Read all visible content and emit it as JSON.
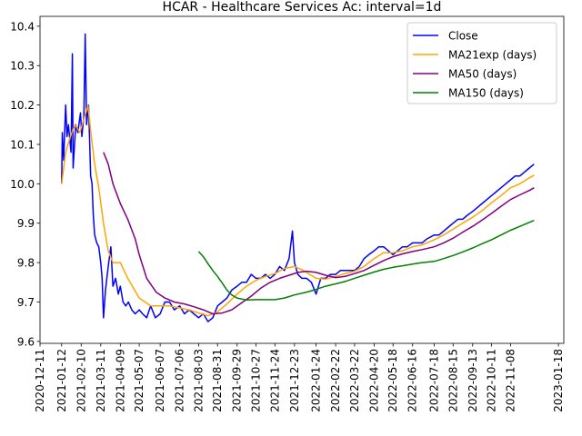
{
  "chart_data": {
    "type": "line",
    "title": "HCAR - Healthcare Services Ac: interval=1d",
    "xlabel": "",
    "ylabel": "",
    "xlim": [
      "2020-12-11",
      "2023-01-26"
    ],
    "ylim": [
      9.595,
      10.425
    ],
    "y_ticks": [
      9.6,
      9.7,
      9.8,
      9.9,
      10.0,
      10.1,
      10.2,
      10.3,
      10.4
    ],
    "x_ticks": [
      "2020-12-11",
      "2021-01-12",
      "2021-02-10",
      "2021-03-11",
      "2021-04-09",
      "2021-05-07",
      "2021-06-07",
      "2021-07-06",
      "2021-08-03",
      "2021-08-31",
      "2021-09-29",
      "2021-10-27",
      "2021-11-24",
      "2021-12-23",
      "2022-01-24",
      "2022-02-22",
      "2022-03-22",
      "2022-04-20",
      "2022-05-18",
      "2022-06-16",
      "2022-07-18",
      "2022-08-15",
      "2022-09-13",
      "2022-10-11",
      "2022-11-08",
      "2023-01-18"
    ],
    "legend_position": "top-right",
    "grid": false,
    "series": [
      {
        "name": "Close",
        "color": "#0000ff",
        "points": [
          [
            "2021-01-12",
            10.0
          ],
          [
            "2021-01-13",
            10.13
          ],
          [
            "2021-01-15",
            10.06
          ],
          [
            "2021-01-18",
            10.2
          ],
          [
            "2021-01-20",
            10.12
          ],
          [
            "2021-01-22",
            10.15
          ],
          [
            "2021-01-26",
            10.08
          ],
          [
            "2021-01-28",
            10.33
          ],
          [
            "2021-01-29",
            10.04
          ],
          [
            "2021-02-02",
            10.15
          ],
          [
            "2021-02-05",
            10.13
          ],
          [
            "2021-02-09",
            10.18
          ],
          [
            "2021-02-11",
            10.12
          ],
          [
            "2021-02-14",
            10.17
          ],
          [
            "2021-02-16",
            10.38
          ],
          [
            "2021-02-18",
            10.15
          ],
          [
            "2021-02-21",
            10.2
          ],
          [
            "2021-02-24",
            10.02
          ],
          [
            "2021-02-26",
            10.0
          ],
          [
            "2021-02-28",
            9.92
          ],
          [
            "2021-03-02",
            9.87
          ],
          [
            "2021-03-05",
            9.85
          ],
          [
            "2021-03-08",
            9.84
          ],
          [
            "2021-03-11",
            9.8
          ],
          [
            "2021-03-13",
            9.76
          ],
          [
            "2021-03-15",
            9.66
          ],
          [
            "2021-03-18",
            9.73
          ],
          [
            "2021-03-22",
            9.79
          ],
          [
            "2021-03-26",
            9.84
          ],
          [
            "2021-03-29",
            9.74
          ],
          [
            "2021-04-02",
            9.76
          ],
          [
            "2021-04-06",
            9.72
          ],
          [
            "2021-04-09",
            9.74
          ],
          [
            "2021-04-13",
            9.7
          ],
          [
            "2021-04-17",
            9.69
          ],
          [
            "2021-04-21",
            9.7
          ],
          [
            "2021-04-26",
            9.68
          ],
          [
            "2021-05-01",
            9.67
          ],
          [
            "2021-05-07",
            9.68
          ],
          [
            "2021-05-12",
            9.67
          ],
          [
            "2021-05-18",
            9.66
          ],
          [
            "2021-05-24",
            9.69
          ],
          [
            "2021-05-31",
            9.66
          ],
          [
            "2021-06-07",
            9.67
          ],
          [
            "2021-06-14",
            9.7
          ],
          [
            "2021-06-21",
            9.7
          ],
          [
            "2021-06-28",
            9.68
          ],
          [
            "2021-07-06",
            9.69
          ],
          [
            "2021-07-13",
            9.67
          ],
          [
            "2021-07-20",
            9.68
          ],
          [
            "2021-07-27",
            9.67
          ],
          [
            "2021-08-03",
            9.66
          ],
          [
            "2021-08-10",
            9.67
          ],
          [
            "2021-08-17",
            9.65
          ],
          [
            "2021-08-24",
            9.66
          ],
          [
            "2021-08-31",
            9.69
          ],
          [
            "2021-09-07",
            9.7
          ],
          [
            "2021-09-14",
            9.71
          ],
          [
            "2021-09-21",
            9.73
          ],
          [
            "2021-09-29",
            9.74
          ],
          [
            "2021-10-06",
            9.75
          ],
          [
            "2021-10-13",
            9.75
          ],
          [
            "2021-10-20",
            9.77
          ],
          [
            "2021-10-27",
            9.76
          ],
          [
            "2021-11-03",
            9.76
          ],
          [
            "2021-11-10",
            9.77
          ],
          [
            "2021-11-17",
            9.76
          ],
          [
            "2021-11-24",
            9.77
          ],
          [
            "2021-12-01",
            9.79
          ],
          [
            "2021-12-08",
            9.78
          ],
          [
            "2021-12-15",
            9.81
          ],
          [
            "2021-12-20",
            9.88
          ],
          [
            "2021-12-23",
            9.8
          ],
          [
            "2021-12-28",
            9.77
          ],
          [
            "2022-01-03",
            9.76
          ],
          [
            "2022-01-10",
            9.76
          ],
          [
            "2022-01-17",
            9.75
          ],
          [
            "2022-01-24",
            9.72
          ],
          [
            "2022-01-31",
            9.76
          ],
          [
            "2022-02-07",
            9.76
          ],
          [
            "2022-02-14",
            9.77
          ],
          [
            "2022-02-22",
            9.77
          ],
          [
            "2022-03-01",
            9.78
          ],
          [
            "2022-03-08",
            9.78
          ],
          [
            "2022-03-15",
            9.78
          ],
          [
            "2022-03-22",
            9.78
          ],
          [
            "2022-03-29",
            9.79
          ],
          [
            "2022-04-05",
            9.81
          ],
          [
            "2022-04-12",
            9.82
          ],
          [
            "2022-04-20",
            9.83
          ],
          [
            "2022-04-27",
            9.84
          ],
          [
            "2022-05-04",
            9.84
          ],
          [
            "2022-05-11",
            9.83
          ],
          [
            "2022-05-18",
            9.82
          ],
          [
            "2022-05-25",
            9.83
          ],
          [
            "2022-06-01",
            9.84
          ],
          [
            "2022-06-08",
            9.84
          ],
          [
            "2022-06-16",
            9.85
          ],
          [
            "2022-06-23",
            9.85
          ],
          [
            "2022-06-30",
            9.85
          ],
          [
            "2022-07-07",
            9.86
          ],
          [
            "2022-07-18",
            9.87
          ],
          [
            "2022-07-25",
            9.87
          ],
          [
            "2022-08-01",
            9.88
          ],
          [
            "2022-08-08",
            9.89
          ],
          [
            "2022-08-15",
            9.9
          ],
          [
            "2022-08-22",
            9.91
          ],
          [
            "2022-08-29",
            9.91
          ],
          [
            "2022-09-05",
            9.92
          ],
          [
            "2022-09-13",
            9.93
          ],
          [
            "2022-09-20",
            9.94
          ],
          [
            "2022-09-27",
            9.95
          ],
          [
            "2022-10-04",
            9.96
          ],
          [
            "2022-10-11",
            9.97
          ],
          [
            "2022-10-18",
            9.98
          ],
          [
            "2022-10-25",
            9.99
          ],
          [
            "2022-11-01",
            10.0
          ],
          [
            "2022-11-08",
            10.01
          ],
          [
            "2022-11-15",
            10.02
          ],
          [
            "2022-11-22",
            10.02
          ],
          [
            "2022-11-29",
            10.03
          ],
          [
            "2022-12-06",
            10.04
          ],
          [
            "2022-12-13",
            10.05
          ]
        ]
      },
      {
        "name": "MA21exp (days)",
        "color": "#ffa500",
        "points": [
          [
            "2021-01-12",
            10.0
          ],
          [
            "2021-01-18",
            10.08
          ],
          [
            "2021-01-25",
            10.12
          ],
          [
            "2021-02-01",
            10.15
          ],
          [
            "2021-02-08",
            10.13
          ],
          [
            "2021-02-15",
            10.17
          ],
          [
            "2021-02-20",
            10.2
          ],
          [
            "2021-02-25",
            10.12
          ],
          [
            "2021-03-02",
            10.05
          ],
          [
            "2021-03-08",
            9.99
          ],
          [
            "2021-03-15",
            9.9
          ],
          [
            "2021-03-22",
            9.83
          ],
          [
            "2021-03-29",
            9.8
          ],
          [
            "2021-04-09",
            9.8
          ],
          [
            "2021-04-20",
            9.76
          ],
          [
            "2021-05-07",
            9.71
          ],
          [
            "2021-05-24",
            9.69
          ],
          [
            "2021-06-07",
            9.69
          ],
          [
            "2021-06-21",
            9.69
          ],
          [
            "2021-07-06",
            9.685
          ],
          [
            "2021-07-20",
            9.68
          ],
          [
            "2021-08-03",
            9.672
          ],
          [
            "2021-08-17",
            9.665
          ],
          [
            "2021-08-31",
            9.675
          ],
          [
            "2021-09-14",
            9.695
          ],
          [
            "2021-09-29",
            9.72
          ],
          [
            "2021-10-13",
            9.74
          ],
          [
            "2021-10-27",
            9.755
          ],
          [
            "2021-11-10",
            9.765
          ],
          [
            "2021-11-24",
            9.772
          ],
          [
            "2021-12-08",
            9.785
          ],
          [
            "2021-12-23",
            9.79
          ],
          [
            "2022-01-03",
            9.782
          ],
          [
            "2022-01-24",
            9.76
          ],
          [
            "2022-02-07",
            9.758
          ],
          [
            "2022-02-22",
            9.765
          ],
          [
            "2022-03-08",
            9.772
          ],
          [
            "2022-03-22",
            9.778
          ],
          [
            "2022-04-05",
            9.79
          ],
          [
            "2022-04-20",
            9.81
          ],
          [
            "2022-05-04",
            9.825
          ],
          [
            "2022-05-18",
            9.825
          ],
          [
            "2022-06-01",
            9.83
          ],
          [
            "2022-06-16",
            9.84
          ],
          [
            "2022-06-30",
            9.845
          ],
          [
            "2022-07-18",
            9.858
          ],
          [
            "2022-08-01",
            9.87
          ],
          [
            "2022-08-15",
            9.885
          ],
          [
            "2022-08-29",
            9.9
          ],
          [
            "2022-09-13",
            9.915
          ],
          [
            "2022-09-27",
            9.932
          ],
          [
            "2022-10-11",
            9.952
          ],
          [
            "2022-10-25",
            9.97
          ],
          [
            "2022-11-08",
            9.99
          ],
          [
            "2022-11-22",
            10.0
          ],
          [
            "2022-12-06",
            10.015
          ],
          [
            "2022-12-13",
            10.022
          ]
        ]
      },
      {
        "name": "MA50 (days)",
        "color": "#800080",
        "points": [
          [
            "2021-03-15",
            10.08
          ],
          [
            "2021-03-22",
            10.05
          ],
          [
            "2021-03-29",
            10.0
          ],
          [
            "2021-04-09",
            9.95
          ],
          [
            "2021-04-20",
            9.91
          ],
          [
            "2021-05-01",
            9.86
          ],
          [
            "2021-05-07",
            9.82
          ],
          [
            "2021-05-18",
            9.76
          ],
          [
            "2021-06-01",
            9.725
          ],
          [
            "2021-06-14",
            9.71
          ],
          [
            "2021-06-28",
            9.7
          ],
          [
            "2021-07-13",
            9.695
          ],
          [
            "2021-07-27",
            9.688
          ],
          [
            "2021-08-10",
            9.68
          ],
          [
            "2021-08-24",
            9.67
          ],
          [
            "2021-09-07",
            9.672
          ],
          [
            "2021-09-21",
            9.68
          ],
          [
            "2021-10-06",
            9.698
          ],
          [
            "2021-10-20",
            9.715
          ],
          [
            "2021-11-03",
            9.735
          ],
          [
            "2021-11-17",
            9.75
          ],
          [
            "2021-12-01",
            9.76
          ],
          [
            "2021-12-15",
            9.768
          ],
          [
            "2021-12-28",
            9.775
          ],
          [
            "2022-01-10",
            9.778
          ],
          [
            "2022-01-24",
            9.775
          ],
          [
            "2022-02-07",
            9.768
          ],
          [
            "2022-02-22",
            9.762
          ],
          [
            "2022-03-08",
            9.765
          ],
          [
            "2022-03-22",
            9.772
          ],
          [
            "2022-04-05",
            9.78
          ],
          [
            "2022-04-20",
            9.793
          ],
          [
            "2022-05-04",
            9.805
          ],
          [
            "2022-05-18",
            9.815
          ],
          [
            "2022-06-01",
            9.822
          ],
          [
            "2022-06-16",
            9.828
          ],
          [
            "2022-06-30",
            9.833
          ],
          [
            "2022-07-18",
            9.84
          ],
          [
            "2022-08-01",
            9.85
          ],
          [
            "2022-08-15",
            9.862
          ],
          [
            "2022-08-29",
            9.877
          ],
          [
            "2022-09-13",
            9.892
          ],
          [
            "2022-09-27",
            9.908
          ],
          [
            "2022-10-11",
            9.925
          ],
          [
            "2022-10-25",
            9.943
          ],
          [
            "2022-11-08",
            9.96
          ],
          [
            "2022-11-22",
            9.972
          ],
          [
            "2022-12-06",
            9.983
          ],
          [
            "2022-12-13",
            9.99
          ]
        ]
      },
      {
        "name": "MA150 (days)",
        "color": "#008000",
        "points": [
          [
            "2021-08-03",
            9.828
          ],
          [
            "2021-08-10",
            9.815
          ],
          [
            "2021-08-17",
            9.797
          ],
          [
            "2021-08-24",
            9.78
          ],
          [
            "2021-08-31",
            9.765
          ],
          [
            "2021-09-07",
            9.748
          ],
          [
            "2021-09-14",
            9.73
          ],
          [
            "2021-09-21",
            9.718
          ],
          [
            "2021-09-29",
            9.71
          ],
          [
            "2021-10-13",
            9.705
          ],
          [
            "2021-10-27",
            9.706
          ],
          [
            "2021-11-10",
            9.706
          ],
          [
            "2021-11-24",
            9.706
          ],
          [
            "2021-12-08",
            9.71
          ],
          [
            "2021-12-23",
            9.718
          ],
          [
            "2022-01-10",
            9.725
          ],
          [
            "2022-01-24",
            9.732
          ],
          [
            "2022-02-07",
            9.74
          ],
          [
            "2022-02-22",
            9.746
          ],
          [
            "2022-03-08",
            9.752
          ],
          [
            "2022-03-22",
            9.76
          ],
          [
            "2022-04-05",
            9.768
          ],
          [
            "2022-04-20",
            9.776
          ],
          [
            "2022-05-04",
            9.783
          ],
          [
            "2022-05-18",
            9.788
          ],
          [
            "2022-06-01",
            9.792
          ],
          [
            "2022-06-16",
            9.796
          ],
          [
            "2022-06-30",
            9.8
          ],
          [
            "2022-07-18",
            9.803
          ],
          [
            "2022-08-01",
            9.81
          ],
          [
            "2022-08-15",
            9.818
          ],
          [
            "2022-08-29",
            9.827
          ],
          [
            "2022-09-13",
            9.837
          ],
          [
            "2022-09-27",
            9.848
          ],
          [
            "2022-10-11",
            9.858
          ],
          [
            "2022-10-25",
            9.87
          ],
          [
            "2022-11-08",
            9.882
          ],
          [
            "2022-11-22",
            9.892
          ],
          [
            "2022-12-06",
            9.902
          ],
          [
            "2022-12-13",
            9.907
          ]
        ]
      }
    ]
  }
}
